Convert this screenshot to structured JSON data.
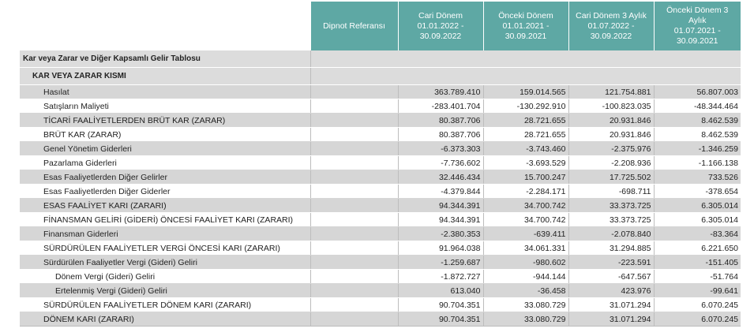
{
  "header": {
    "ref_label": "Dipnot Referansı",
    "periods": [
      [
        "Cari Dönem",
        "01.01.2022 -",
        "30.09.2022"
      ],
      [
        "Önceki Dönem",
        "01.01.2021 -",
        "30.09.2021"
      ],
      [
        "Cari Dönem 3 Aylık",
        "01.07.2022 -",
        "30.09.2022"
      ],
      [
        "Önceki Dönem 3",
        "Aylık",
        "01.07.2021 -",
        "30.09.2021"
      ]
    ]
  },
  "sections": [
    {
      "label": "Kar veya Zarar ve Diğer Kapsamlı Gelir Tablosu",
      "level": 0
    },
    {
      "label": "KAR VEYA ZARAR KISMI",
      "level": 1
    }
  ],
  "rows": [
    {
      "label": "Hasılat",
      "level": 2,
      "values": [
        "363.789.410",
        "159.014.565",
        "121.754.881",
        "56.807.003"
      ]
    },
    {
      "label": "Satışların Maliyeti",
      "level": 2,
      "values": [
        "-283.401.704",
        "-130.292.910",
        "-100.823.035",
        "-48.344.464"
      ]
    },
    {
      "label": "TİCARİ FAALİYETLERDEN BRÜT KAR (ZARAR)",
      "level": 2,
      "values": [
        "80.387.706",
        "28.721.655",
        "20.931.846",
        "8.462.539"
      ]
    },
    {
      "label": "BRÜT KAR (ZARAR)",
      "level": 2,
      "values": [
        "80.387.706",
        "28.721.655",
        "20.931.846",
        "8.462.539"
      ]
    },
    {
      "label": "Genel Yönetim Giderleri",
      "level": 2,
      "values": [
        "-6.373.303",
        "-3.743.460",
        "-2.375.976",
        "-1.346.259"
      ]
    },
    {
      "label": "Pazarlama Giderleri",
      "level": 2,
      "values": [
        "-7.736.602",
        "-3.693.529",
        "-2.208.936",
        "-1.166.138"
      ]
    },
    {
      "label": "Esas Faaliyetlerden Diğer Gelirler",
      "level": 2,
      "values": [
        "32.446.434",
        "15.700.247",
        "17.725.502",
        "733.526"
      ]
    },
    {
      "label": "Esas Faaliyetlerden Diğer Giderler",
      "level": 2,
      "values": [
        "-4.379.844",
        "-2.284.171",
        "-698.711",
        "-378.654"
      ]
    },
    {
      "label": "ESAS FAALİYET KARI (ZARARI)",
      "level": 2,
      "values": [
        "94.344.391",
        "34.700.742",
        "33.373.725",
        "6.305.014"
      ]
    },
    {
      "label": "FİNANSMAN GELİRİ (GİDERİ) ÖNCESİ FAALİYET KARI (ZARARI)",
      "level": 2,
      "values": [
        "94.344.391",
        "34.700.742",
        "33.373.725",
        "6.305.014"
      ]
    },
    {
      "label": "Finansman Giderleri",
      "level": 2,
      "values": [
        "-2.380.353",
        "-639.411",
        "-2.078.840",
        "-83.364"
      ]
    },
    {
      "label": "SÜRDÜRÜLEN FAALİYETLER VERGİ ÖNCESİ KARI (ZARARI)",
      "level": 2,
      "values": [
        "91.964.038",
        "34.061.331",
        "31.294.885",
        "6.221.650"
      ]
    },
    {
      "label": "Sürdürülen Faaliyetler Vergi (Gideri) Geliri",
      "level": 2,
      "values": [
        "-1.259.687",
        "-980.602",
        "-223.591",
        "-151.405"
      ]
    },
    {
      "label": "Dönem Vergi (Gideri) Geliri",
      "level": 3,
      "values": [
        "-1.872.727",
        "-944.144",
        "-647.567",
        "-51.764"
      ]
    },
    {
      "label": "Ertelenmiş Vergi (Gideri) Geliri",
      "level": 3,
      "values": [
        "613.040",
        "-36.458",
        "423.976",
        "-99.641"
      ]
    },
    {
      "label": "SÜRDÜRÜLEN FAALİYETLER DÖNEM KARI (ZARARI)",
      "level": 2,
      "values": [
        "90.704.351",
        "33.080.729",
        "31.071.294",
        "6.070.245"
      ]
    },
    {
      "label": "DÖNEM KARI (ZARARI)",
      "level": 2,
      "values": [
        "90.704.351",
        "33.080.729",
        "31.071.294",
        "6.070.245"
      ]
    }
  ]
}
